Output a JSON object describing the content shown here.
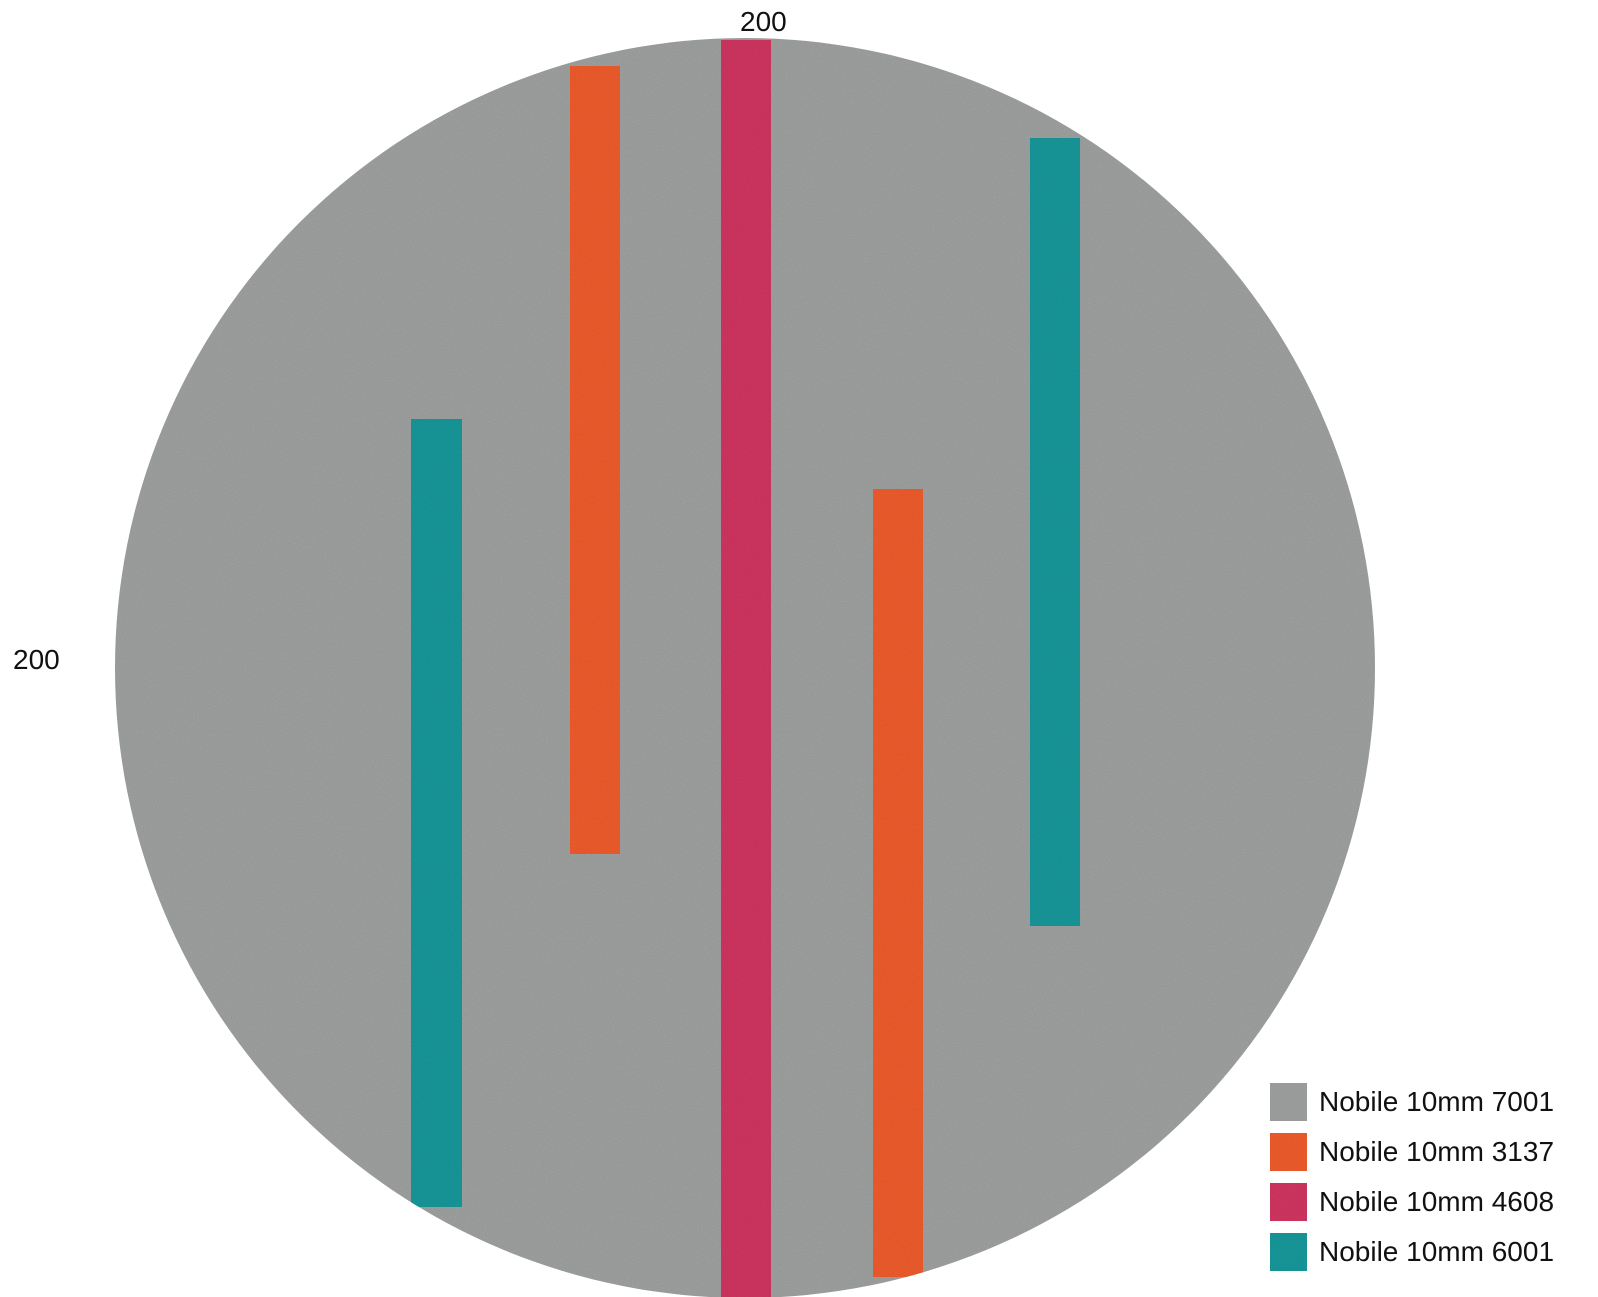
{
  "dimensions": {
    "width_label": "200",
    "height_label": "200"
  },
  "materials": {
    "base": {
      "label": "Nobile 10mm 7001",
      "color": "#9ea19f"
    },
    "orange": {
      "label": "Nobile 10mm 3137",
      "color": "#ee5c2c"
    },
    "crimson": {
      "label": "Nobile 10mm 4608",
      "color": "#cf3560"
    },
    "teal": {
      "label": "Nobile 10mm 6001",
      "color": "#14979a"
    }
  },
  "legend": [
    {
      "label": "Nobile 10mm 7001",
      "color": "#9ea19f"
    },
    {
      "label": "Nobile 10mm 3137",
      "color": "#ee5c2c"
    },
    {
      "label": "Nobile 10mm 4608",
      "color": "#cf3560"
    },
    {
      "label": "Nobile 10mm 6001",
      "color": "#14979a"
    }
  ]
}
